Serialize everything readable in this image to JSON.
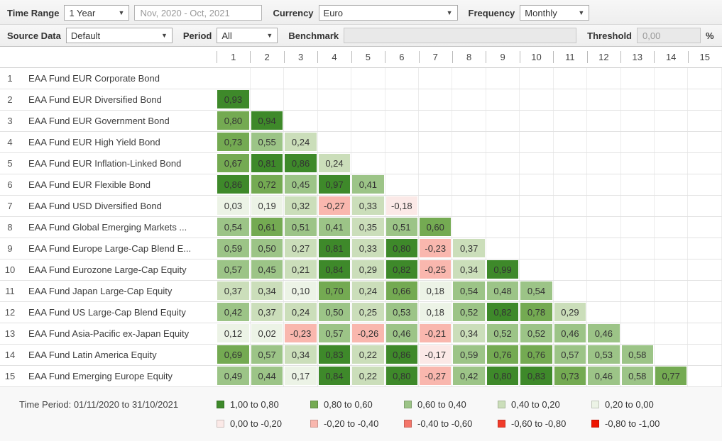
{
  "palette": {
    "b1": "#3e892a",
    "b2": "#74aa52",
    "b3": "#9cc487",
    "b4": "#cbdeba",
    "b5": "#ecf3e6",
    "b6": "#fbe9e7",
    "b7": "#f9b7ae",
    "b8": "#f4766a",
    "b9": "#f13b2a",
    "b10": "#ee1500"
  },
  "toolbar1": {
    "time_range_label": "Time Range",
    "time_range_value": "1 Year",
    "date_range_value": "Nov, 2020 - Oct, 2021",
    "currency_label": "Currency",
    "currency_value": "Euro",
    "frequency_label": "Frequency",
    "frequency_value": "Monthly"
  },
  "toolbar2": {
    "source_data_label": "Source Data",
    "source_data_value": "Default",
    "period_label": "Period",
    "period_value": "All",
    "benchmark_label": "Benchmark",
    "benchmark_value": "",
    "threshold_label": "Threshold",
    "threshold_value": "0,00",
    "percent_label": "%"
  },
  "matrix": {
    "column_headers": [
      "1",
      "2",
      "3",
      "4",
      "5",
      "6",
      "7",
      "8",
      "9",
      "10",
      "11",
      "12",
      "13",
      "14",
      "15"
    ],
    "rows": [
      {
        "num": "1",
        "name": "EAA Fund EUR Corporate Bond",
        "cells": []
      },
      {
        "num": "2",
        "name": "EAA Fund EUR Diversified Bond",
        "cells": [
          {
            "v": "0,93",
            "b": 1
          }
        ]
      },
      {
        "num": "3",
        "name": "EAA Fund EUR Government Bond",
        "cells": [
          {
            "v": "0,80",
            "b": 2
          },
          {
            "v": "0,94",
            "b": 1
          }
        ]
      },
      {
        "num": "4",
        "name": "EAA Fund EUR High Yield Bond",
        "cells": [
          {
            "v": "0,73",
            "b": 2
          },
          {
            "v": "0,55",
            "b": 3
          },
          {
            "v": "0,24",
            "b": 4
          }
        ]
      },
      {
        "num": "5",
        "name": "EAA Fund EUR Inflation-Linked Bond",
        "cells": [
          {
            "v": "0,67",
            "b": 2
          },
          {
            "v": "0,81",
            "b": 1
          },
          {
            "v": "0,86",
            "b": 1
          },
          {
            "v": "0,24",
            "b": 4
          }
        ]
      },
      {
        "num": "6",
        "name": "EAA Fund EUR Flexible Bond",
        "cells": [
          {
            "v": "0,86",
            "b": 1
          },
          {
            "v": "0,72",
            "b": 2
          },
          {
            "v": "0,45",
            "b": 3
          },
          {
            "v": "0,97",
            "b": 1
          },
          {
            "v": "0,41",
            "b": 3
          }
        ]
      },
      {
        "num": "7",
        "name": "EAA Fund USD Diversified Bond",
        "cells": [
          {
            "v": "0,03",
            "b": 5
          },
          {
            "v": "0,19",
            "b": 5
          },
          {
            "v": "0,32",
            "b": 4
          },
          {
            "v": "-0,27",
            "b": 7
          },
          {
            "v": "0,33",
            "b": 4
          },
          {
            "v": "-0,18",
            "b": 6
          }
        ]
      },
      {
        "num": "8",
        "name": "EAA Fund Global Emerging Markets ...",
        "cells": [
          {
            "v": "0,54",
            "b": 3
          },
          {
            "v": "0,61",
            "b": 2
          },
          {
            "v": "0,51",
            "b": 3
          },
          {
            "v": "0,41",
            "b": 3
          },
          {
            "v": "0,35",
            "b": 4
          },
          {
            "v": "0,51",
            "b": 3
          },
          {
            "v": "0,60",
            "b": 2
          }
        ]
      },
      {
        "num": "9",
        "name": "EAA Fund Europe Large-Cap Blend E...",
        "cells": [
          {
            "v": "0,59",
            "b": 3
          },
          {
            "v": "0,50",
            "b": 3
          },
          {
            "v": "0,27",
            "b": 4
          },
          {
            "v": "0,81",
            "b": 1
          },
          {
            "v": "0,33",
            "b": 4
          },
          {
            "v": "0,80",
            "b": 1
          },
          {
            "v": "-0,23",
            "b": 7
          },
          {
            "v": "0,37",
            "b": 4
          }
        ]
      },
      {
        "num": "10",
        "name": "EAA Fund Eurozone Large-Cap Equity",
        "cells": [
          {
            "v": "0,57",
            "b": 3
          },
          {
            "v": "0,45",
            "b": 3
          },
          {
            "v": "0,21",
            "b": 4
          },
          {
            "v": "0,84",
            "b": 1
          },
          {
            "v": "0,29",
            "b": 4
          },
          {
            "v": "0,82",
            "b": 1
          },
          {
            "v": "-0,25",
            "b": 7
          },
          {
            "v": "0,34",
            "b": 4
          },
          {
            "v": "0,99",
            "b": 1
          }
        ]
      },
      {
        "num": "11",
        "name": "EAA Fund Japan Large-Cap Equity",
        "cells": [
          {
            "v": "0,37",
            "b": 4
          },
          {
            "v": "0,34",
            "b": 4
          },
          {
            "v": "0,10",
            "b": 5
          },
          {
            "v": "0,70",
            "b": 2
          },
          {
            "v": "0,24",
            "b": 4
          },
          {
            "v": "0,66",
            "b": 2
          },
          {
            "v": "0,18",
            "b": 5
          },
          {
            "v": "0,54",
            "b": 3
          },
          {
            "v": "0,48",
            "b": 3
          },
          {
            "v": "0,54",
            "b": 3
          }
        ]
      },
      {
        "num": "12",
        "name": "EAA Fund US Large-Cap Blend Equity",
        "cells": [
          {
            "v": "0,42",
            "b": 3
          },
          {
            "v": "0,37",
            "b": 4
          },
          {
            "v": "0,24",
            "b": 4
          },
          {
            "v": "0,50",
            "b": 3
          },
          {
            "v": "0,25",
            "b": 4
          },
          {
            "v": "0,53",
            "b": 3
          },
          {
            "v": "0,18",
            "b": 5
          },
          {
            "v": "0,52",
            "b": 3
          },
          {
            "v": "0,82",
            "b": 1
          },
          {
            "v": "0,78",
            "b": 2
          },
          {
            "v": "0,29",
            "b": 4
          }
        ]
      },
      {
        "num": "13",
        "name": "EAA Fund Asia-Pacific ex-Japan Equity",
        "cells": [
          {
            "v": "0,12",
            "b": 5
          },
          {
            "v": "0,02",
            "b": 5
          },
          {
            "v": "-0,23",
            "b": 7
          },
          {
            "v": "0,57",
            "b": 3
          },
          {
            "v": "-0,26",
            "b": 7
          },
          {
            "v": "0,46",
            "b": 3
          },
          {
            "v": "-0,21",
            "b": 7
          },
          {
            "v": "0,34",
            "b": 4
          },
          {
            "v": "0,52",
            "b": 3
          },
          {
            "v": "0,52",
            "b": 3
          },
          {
            "v": "0,46",
            "b": 3
          },
          {
            "v": "0,46",
            "b": 3
          }
        ]
      },
      {
        "num": "14",
        "name": "EAA Fund Latin America Equity",
        "cells": [
          {
            "v": "0,69",
            "b": 2
          },
          {
            "v": "0,57",
            "b": 3
          },
          {
            "v": "0,34",
            "b": 4
          },
          {
            "v": "0,83",
            "b": 1
          },
          {
            "v": "0,22",
            "b": 4
          },
          {
            "v": "0,86",
            "b": 1
          },
          {
            "v": "-0,17",
            "b": 6
          },
          {
            "v": "0,59",
            "b": 3
          },
          {
            "v": "0,76",
            "b": 2
          },
          {
            "v": "0,76",
            "b": 2
          },
          {
            "v": "0,57",
            "b": 3
          },
          {
            "v": "0,53",
            "b": 3
          },
          {
            "v": "0,58",
            "b": 3
          }
        ]
      },
      {
        "num": "15",
        "name": "EAA Fund Emerging Europe Equity",
        "cells": [
          {
            "v": "0,49",
            "b": 3
          },
          {
            "v": "0,44",
            "b": 3
          },
          {
            "v": "0,17",
            "b": 5
          },
          {
            "v": "0,84",
            "b": 1
          },
          {
            "v": "0,22",
            "b": 4
          },
          {
            "v": "0,80",
            "b": 1
          },
          {
            "v": "-0,27",
            "b": 7
          },
          {
            "v": "0,42",
            "b": 3
          },
          {
            "v": "0,80",
            "b": 1
          },
          {
            "v": "0,83",
            "b": 1
          },
          {
            "v": "0,73",
            "b": 2
          },
          {
            "v": "0,46",
            "b": 3
          },
          {
            "v": "0,58",
            "b": 3
          },
          {
            "v": "0,77",
            "b": 2
          }
        ]
      }
    ]
  },
  "footer": {
    "time_period": "Time Period: 01/11/2020 to 31/10/2021",
    "legend": [
      {
        "label": "1,00 to 0,80",
        "bucket": "b1"
      },
      {
        "label": "0,80 to 0,60",
        "bucket": "b2"
      },
      {
        "label": "0,60 to 0,40",
        "bucket": "b3"
      },
      {
        "label": "0,40 to 0,20",
        "bucket": "b4"
      },
      {
        "label": "0,20 to 0,00",
        "bucket": "b5"
      },
      {
        "label": "0,00 to -0,20",
        "bucket": "b6"
      },
      {
        "label": "-0,20 to -0,40",
        "bucket": "b7"
      },
      {
        "label": "-0,40 to -0,60",
        "bucket": "b8"
      },
      {
        "label": "-0,60 to -0,80",
        "bucket": "b9"
      },
      {
        "label": "-0,80 to -1,00",
        "bucket": "b10"
      }
    ]
  }
}
